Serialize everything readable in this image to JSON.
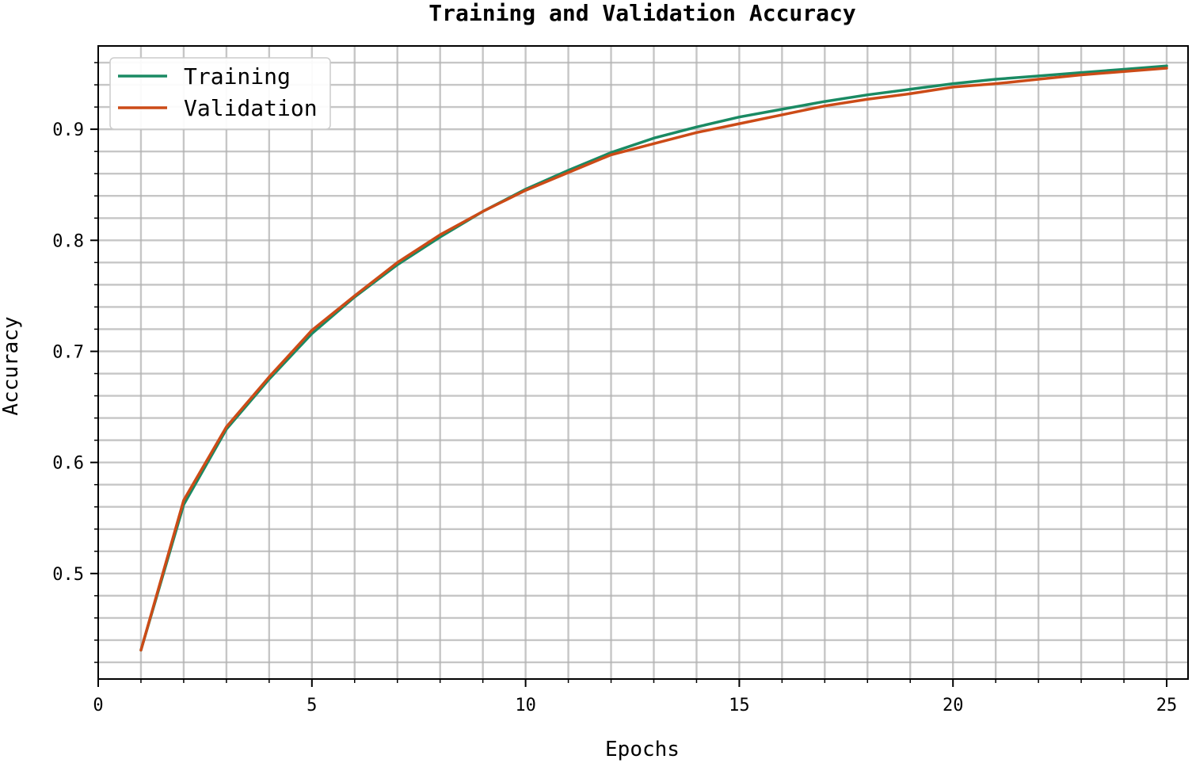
{
  "chart_data": {
    "type": "line",
    "title": "Training and Validation Accuracy",
    "xlabel": "Epochs",
    "ylabel": "Accuracy",
    "xlim": [
      0,
      25.5
    ],
    "ylim": [
      0.405,
      0.975
    ],
    "x_ticks": [
      0,
      5,
      10,
      15,
      20,
      25
    ],
    "x_tick_labels": [
      "0",
      "5",
      "10",
      "15",
      "20",
      "25"
    ],
    "y_ticks": [
      0.5,
      0.6,
      0.7,
      0.8,
      0.9
    ],
    "y_tick_labels": [
      "0.5",
      "0.6",
      "0.7",
      "0.8",
      "0.9"
    ],
    "x_minor_step": 1,
    "y_minor_step": 0.02,
    "grid": true,
    "legend_position": "top-left",
    "x": [
      1,
      2,
      3,
      4,
      5,
      6,
      7,
      8,
      9,
      10,
      11,
      12,
      13,
      14,
      15,
      16,
      17,
      18,
      19,
      20,
      21,
      22,
      23,
      24,
      25
    ],
    "series": [
      {
        "name": "Training",
        "color": "#1a8a63",
        "values": [
          0.431,
          0.562,
          0.63,
          0.675,
          0.716,
          0.749,
          0.778,
          0.803,
          0.826,
          0.846,
          0.863,
          0.879,
          0.892,
          0.902,
          0.911,
          0.918,
          0.925,
          0.931,
          0.936,
          0.941,
          0.945,
          0.948,
          0.951,
          0.954,
          0.957
        ]
      },
      {
        "name": "Validation",
        "color": "#cc4b17",
        "values": [
          0.431,
          0.566,
          0.632,
          0.677,
          0.719,
          0.75,
          0.78,
          0.805,
          0.826,
          0.845,
          0.861,
          0.877,
          0.887,
          0.897,
          0.905,
          0.913,
          0.921,
          0.927,
          0.932,
          0.938,
          0.941,
          0.945,
          0.949,
          0.952,
          0.955
        ]
      }
    ]
  }
}
